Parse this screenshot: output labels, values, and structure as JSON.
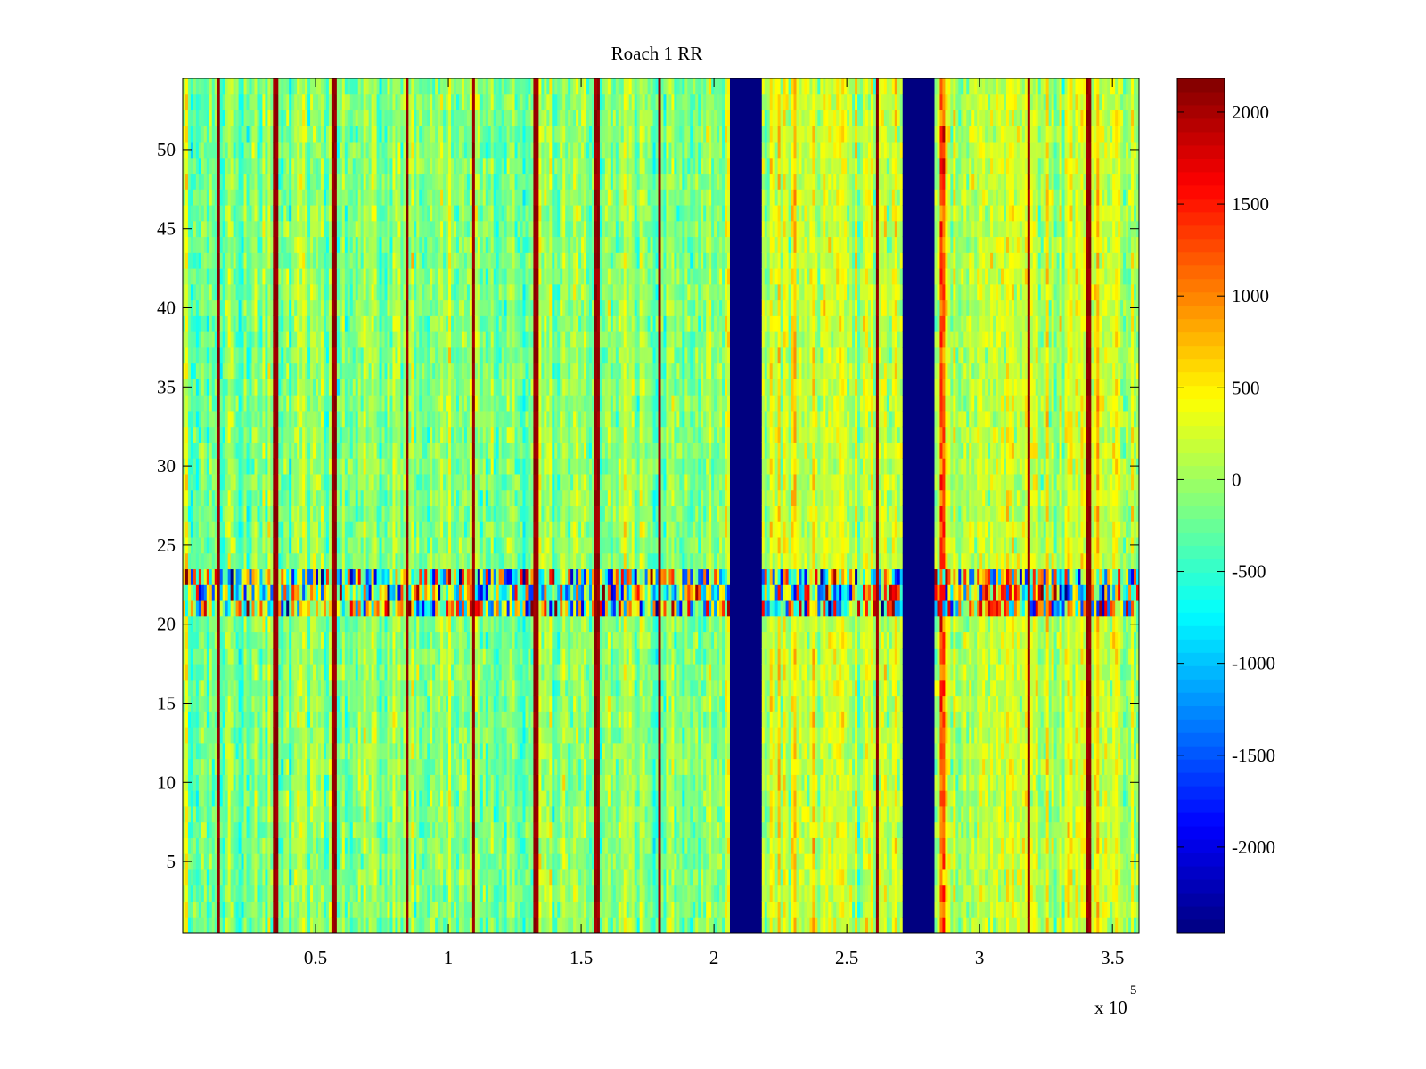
{
  "chart_data": {
    "type": "heatmap",
    "title": "Roach 1 RR",
    "xlabel": "",
    "ylabel": "",
    "x_exponent_label": "x 10",
    "x_exponent": "5",
    "xlim": [
      0,
      360000
    ],
    "ylim": [
      0.5,
      54.5
    ],
    "rows": 54,
    "column_width": 1000,
    "xticks": [
      50000,
      100000,
      150000,
      200000,
      250000,
      300000,
      350000
    ],
    "xtick_labels": [
      "0.5",
      "1",
      "1.5",
      "2",
      "2.5",
      "3",
      "3.5"
    ],
    "yticks": [
      5,
      10,
      15,
      20,
      25,
      30,
      35,
      40,
      45,
      50
    ],
    "ytick_labels": [
      "5",
      "10",
      "15",
      "20",
      "25",
      "30",
      "35",
      "40",
      "45",
      "50"
    ],
    "colorbar": {
      "colormap": "jet",
      "clim": [
        -2466,
        2184
      ],
      "ticks": [
        -2000,
        -1500,
        -1000,
        -500,
        0,
        500,
        1000,
        1500,
        2000
      ],
      "tick_labels": [
        "-2000",
        "-1500",
        "-1000",
        "-500",
        "0",
        "500",
        "1000",
        "1500",
        "2000"
      ]
    },
    "baseline_level": {
      "before_x_210000": -100,
      "after_x_210000": 200
    },
    "high_vertical_lines_x": [
      13400,
      35150,
      56900,
      84400,
      109500,
      132900,
      156000,
      179500,
      261500,
      318400,
      340800
    ],
    "saturated_low_bands_x": [
      [
        205900,
        218300
      ],
      [
        271200,
        282900
      ]
    ],
    "elevated_band_x": [
      284600,
      287300
    ],
    "high_variance_rows": [
      21,
      22,
      23
    ],
    "grid": false
  }
}
